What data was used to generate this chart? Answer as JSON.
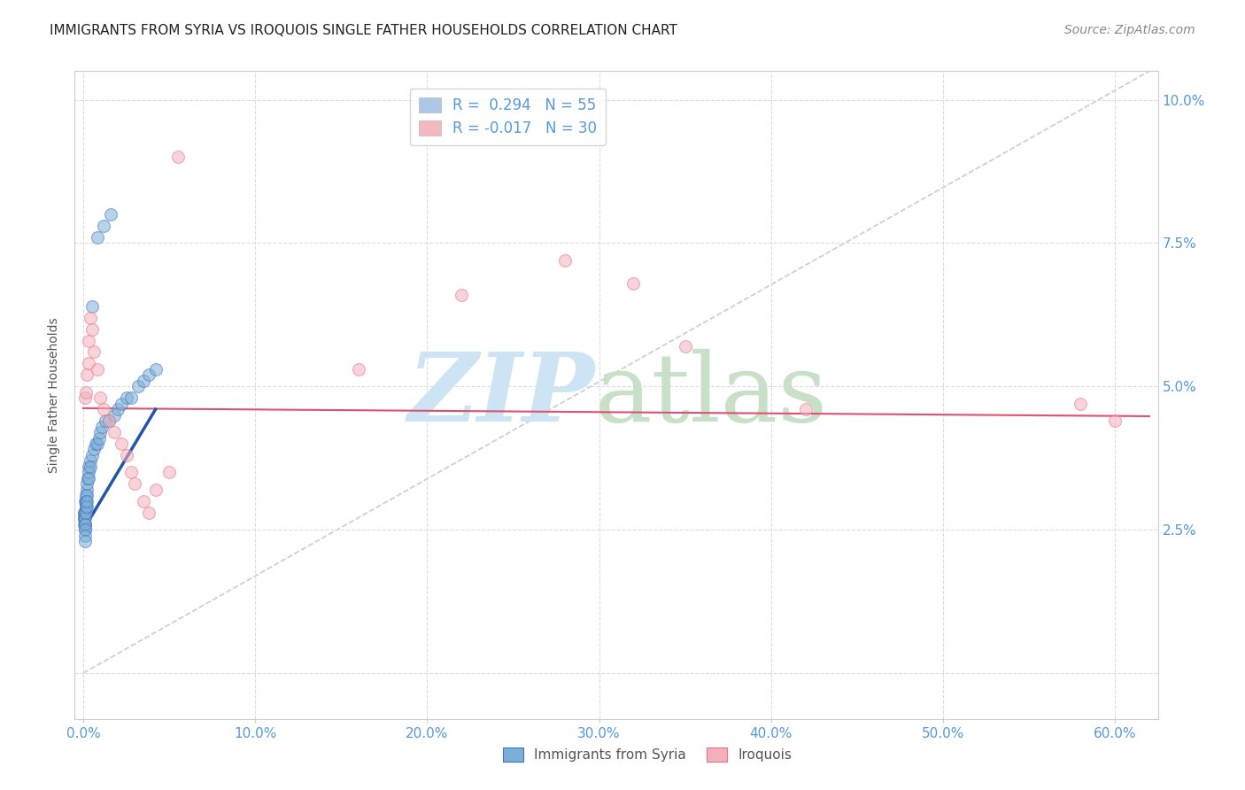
{
  "title": "IMMIGRANTS FROM SYRIA VS IROQUOIS SINGLE FATHER HOUSEHOLDS CORRELATION CHART",
  "source": "Source: ZipAtlas.com",
  "xlabel_ticks": [
    "0.0%",
    "10.0%",
    "20.0%",
    "30.0%",
    "40.0%",
    "50.0%",
    "60.0%"
  ],
  "ylabel_ticks": [
    "10.0%",
    "7.5%",
    "5.0%",
    "2.5%",
    ""
  ],
  "xlabel_tick_vals": [
    0.0,
    0.1,
    0.2,
    0.3,
    0.4,
    0.5,
    0.6
  ],
  "ylabel_tick_vals": [
    0.1,
    0.075,
    0.05,
    0.025,
    0.0
  ],
  "xlim": [
    -0.005,
    0.625
  ],
  "ylim": [
    -0.008,
    0.105
  ],
  "legend_entries": [
    {
      "label": "R =  0.294   N = 55",
      "color": "#aec6e8"
    },
    {
      "label": "R = -0.017   N = 30",
      "color": "#f4b8c1"
    }
  ],
  "blue_scatter_x": [
    0.0003,
    0.0004,
    0.0005,
    0.0005,
    0.0006,
    0.0007,
    0.0008,
    0.0008,
    0.0009,
    0.001,
    0.001,
    0.001,
    0.001,
    0.001,
    0.001,
    0.0012,
    0.0013,
    0.0014,
    0.0015,
    0.0015,
    0.0016,
    0.0017,
    0.0018,
    0.002,
    0.002,
    0.002,
    0.0022,
    0.0025,
    0.003,
    0.003,
    0.003,
    0.004,
    0.004,
    0.005,
    0.006,
    0.007,
    0.008,
    0.009,
    0.01,
    0.011,
    0.013,
    0.015,
    0.018,
    0.02,
    0.022,
    0.025,
    0.028,
    0.032,
    0.035,
    0.038,
    0.042,
    0.008,
    0.012,
    0.016,
    0.005
  ],
  "blue_scatter_y": [
    0.028,
    0.027,
    0.028,
    0.027,
    0.026,
    0.027,
    0.026,
    0.025,
    0.026,
    0.028,
    0.027,
    0.026,
    0.025,
    0.024,
    0.023,
    0.03,
    0.03,
    0.029,
    0.031,
    0.03,
    0.029,
    0.028,
    0.029,
    0.032,
    0.031,
    0.03,
    0.033,
    0.034,
    0.036,
    0.035,
    0.034,
    0.037,
    0.036,
    0.038,
    0.039,
    0.04,
    0.04,
    0.041,
    0.042,
    0.043,
    0.044,
    0.044,
    0.045,
    0.046,
    0.047,
    0.048,
    0.048,
    0.05,
    0.051,
    0.052,
    0.053,
    0.076,
    0.078,
    0.08,
    0.064
  ],
  "pink_scatter_x": [
    0.001,
    0.0015,
    0.002,
    0.003,
    0.003,
    0.004,
    0.005,
    0.006,
    0.008,
    0.01,
    0.012,
    0.015,
    0.018,
    0.022,
    0.025,
    0.028,
    0.03,
    0.035,
    0.038,
    0.042,
    0.05,
    0.055,
    0.16,
    0.22,
    0.28,
    0.32,
    0.35,
    0.42,
    0.58,
    0.6
  ],
  "pink_scatter_y": [
    0.048,
    0.049,
    0.052,
    0.054,
    0.058,
    0.062,
    0.06,
    0.056,
    0.053,
    0.048,
    0.046,
    0.044,
    0.042,
    0.04,
    0.038,
    0.035,
    0.033,
    0.03,
    0.028,
    0.032,
    0.035,
    0.09,
    0.053,
    0.066,
    0.072,
    0.068,
    0.057,
    0.046,
    0.047,
    0.044
  ],
  "blue_line_x": [
    0.0,
    0.042
  ],
  "blue_line_y": [
    0.025,
    0.046
  ],
  "pink_line_x": [
    0.0,
    0.62
  ],
  "pink_line_y": [
    0.0462,
    0.0448
  ],
  "diag_line_x": [
    0.0,
    0.62
  ],
  "diag_line_y": [
    0.0,
    0.105
  ],
  "scatter_size": 100,
  "blue_color": "#7bafd4",
  "blue_edge": "#4472c4",
  "pink_color": "#f4b0bc",
  "pink_edge": "#e8728a",
  "blue_line_color": "#2255aa",
  "pink_line_color": "#e05070",
  "diag_line_color": "#b0b8c8",
  "grid_color": "#dddddd",
  "tick_color": "#5599dd",
  "background_color": "#ffffff",
  "title_fontsize": 11,
  "source_fontsize": 10,
  "tick_fontsize": 11,
  "legend_fontsize": 12,
  "ylabel": "Single Father Households"
}
